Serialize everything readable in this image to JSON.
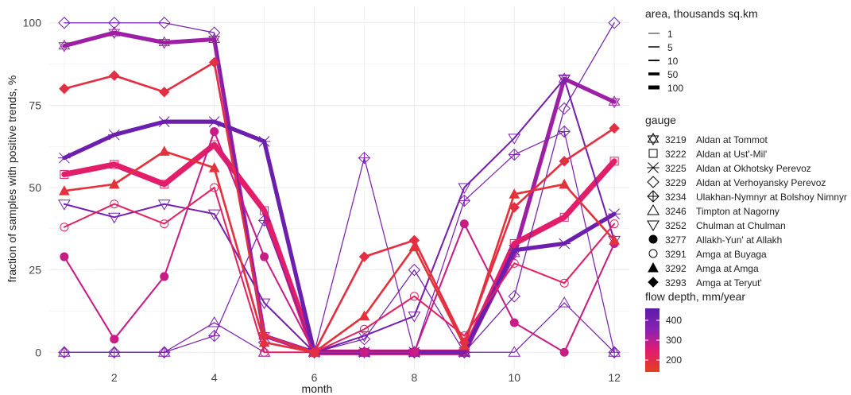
{
  "chart_data": {
    "type": "line",
    "xlabel": "month",
    "ylabel": "fraction of samples with positive trends, %",
    "xlim": [
      0.7,
      12.3
    ],
    "ylim": [
      -5,
      105
    ],
    "xticks": [
      2,
      4,
      6,
      8,
      10,
      12
    ],
    "yticks": [
      0,
      25,
      50,
      75,
      100
    ],
    "x": [
      1,
      2,
      3,
      4,
      5,
      6,
      7,
      8,
      9,
      10,
      11,
      12
    ],
    "grid": true,
    "legend_area": {
      "title": "area, thousands sq.km",
      "labels": [
        "1",
        "5",
        "10",
        "50",
        "100"
      ],
      "widths": [
        1,
        5,
        10,
        50,
        100
      ]
    },
    "legend_gauge": {
      "title": "gauge",
      "entries": [
        {
          "id": "3219",
          "name": "Aldan at Tommot",
          "shape": "star-of-david"
        },
        {
          "id": "3222",
          "name": "Aldan at Ust'-Mil'",
          "shape": "square"
        },
        {
          "id": "3225",
          "name": "Aldan at Okhotsky Perevoz",
          "shape": "asterisk"
        },
        {
          "id": "3229",
          "name": "Aldan at Verhoyansky Perevoz",
          "shape": "diamond-open"
        },
        {
          "id": "3234",
          "name": "Ulakhan-Nymnyr at Bolshoy Nimnyr",
          "shape": "diamond-plus"
        },
        {
          "id": "3246",
          "name": "Timpton at Nagorny",
          "shape": "triangle-open"
        },
        {
          "id": "3252",
          "name": "Chulman at Chulman",
          "shape": "triangle-down-open"
        },
        {
          "id": "3277",
          "name": "Allakh-Yun' at Allakh",
          "shape": "circle-filled"
        },
        {
          "id": "3291",
          "name": "Amga at Buyaga",
          "shape": "circle-open"
        },
        {
          "id": "3292",
          "name": "Amga at Amga",
          "shape": "triangle-filled"
        },
        {
          "id": "3293",
          "name": "Amga at Teryut'",
          "shape": "diamond-filled"
        }
      ]
    },
    "legend_color": {
      "title": "flow depth, mm/year",
      "ticks": [
        200,
        300,
        400
      ],
      "range": [
        140,
        460
      ],
      "colors": [
        "#e3401c",
        "#e21b6f",
        "#8a22b3",
        "#5a1da8"
      ]
    },
    "series": [
      {
        "gauge": "3219",
        "shape": "star-of-david",
        "area": 50,
        "flow": 330,
        "values": [
          93,
          97,
          94,
          95,
          5,
          0,
          0,
          0,
          0,
          30,
          83,
          76
        ]
      },
      {
        "gauge": "3222",
        "shape": "square",
        "area": 100,
        "flow": 240,
        "values": [
          54,
          57,
          51,
          63,
          43,
          0,
          0,
          0,
          0,
          33,
          41,
          58
        ]
      },
      {
        "gauge": "3225",
        "shape": "asterisk",
        "area": 50,
        "flow": 420,
        "values": [
          59,
          66,
          70,
          70,
          64,
          0,
          0,
          0,
          0,
          31,
          33,
          42
        ]
      },
      {
        "gauge": "3229",
        "shape": "diamond-open",
        "area": 1,
        "flow": 410,
        "values": [
          100,
          100,
          100,
          97,
          3,
          0,
          4,
          25,
          0,
          17,
          74,
          100
        ]
      },
      {
        "gauge": "3234",
        "shape": "diamond-plus",
        "area": 1,
        "flow": 380,
        "values": [
          0,
          0,
          0,
          5,
          40,
          0,
          59,
          0,
          46,
          60,
          67,
          0
        ]
      },
      {
        "gauge": "3246",
        "shape": "triangle-open",
        "area": 1,
        "flow": 380,
        "values": [
          0,
          0,
          0,
          9,
          0,
          0,
          0,
          0,
          0,
          0,
          15,
          0
        ]
      },
      {
        "gauge": "3252",
        "shape": "triangle-down-open",
        "area": 5,
        "flow": 400,
        "values": [
          45,
          41,
          45,
          42,
          15,
          0,
          5,
          11,
          50,
          65,
          83,
          34
        ]
      },
      {
        "gauge": "3277",
        "shape": "circle-filled",
        "area": 5,
        "flow": 280,
        "values": [
          29,
          4,
          23,
          67,
          29,
          0,
          0,
          0,
          39,
          9,
          0,
          33
        ]
      },
      {
        "gauge": "3291",
        "shape": "circle-open",
        "area": 5,
        "flow": 230,
        "values": [
          38,
          45,
          39,
          50,
          0,
          0,
          7,
          17,
          5,
          27,
          21,
          39
        ]
      },
      {
        "gauge": "3292",
        "shape": "triangle-filled",
        "area": 10,
        "flow": 180,
        "values": [
          49,
          51,
          61,
          56,
          3,
          0,
          11,
          32,
          2,
          48,
          51,
          34
        ]
      },
      {
        "gauge": "3293",
        "shape": "diamond-filled",
        "area": 10,
        "flow": 190,
        "values": [
          80,
          84,
          79,
          88,
          5,
          0,
          29,
          34,
          3,
          44,
          58,
          68
        ]
      }
    ]
  }
}
